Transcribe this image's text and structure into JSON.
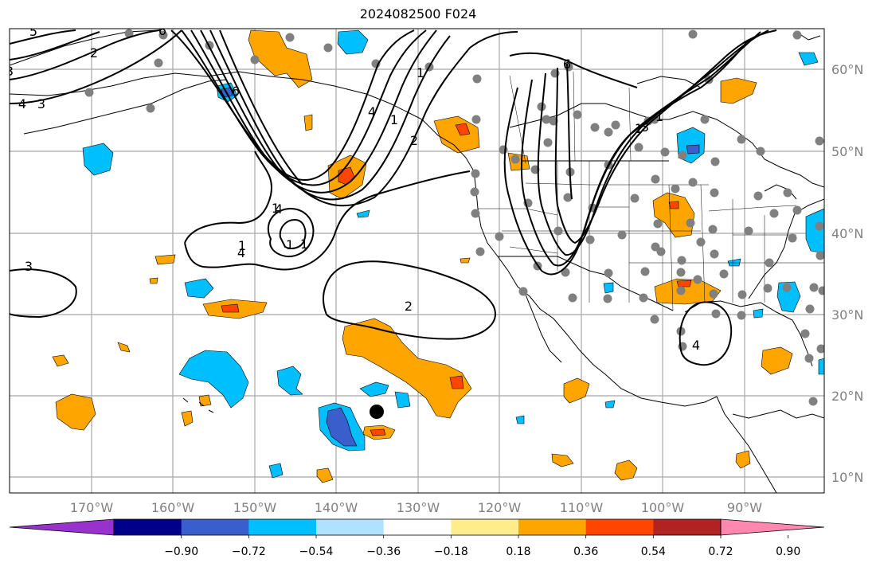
{
  "title": "2024082500 F024",
  "colors": {
    "grid": "#a8a8a8",
    "coast": "#000000",
    "contour": "#000000",
    "station": "#808080",
    "center_marker": "#000000",
    "orange": "#ffa500",
    "red_orange": "#ff4500",
    "deep_sky": "#00bfff",
    "royal": "#3a5fcd"
  },
  "map": {
    "lon_ticks": [
      "170°W",
      "160°W",
      "150°W",
      "140°W",
      "130°W",
      "120°W",
      "110°W",
      "100°W",
      "90°W"
    ],
    "lat_ticks": [
      "10°N",
      "20°N",
      "30°N",
      "40°N",
      "50°N",
      "60°N"
    ],
    "contour_labels": [
      "5",
      "2",
      "6",
      "3",
      "4",
      "3",
      "6",
      "4",
      "1",
      "2",
      "1",
      "6",
      "4",
      "1",
      "1",
      "1",
      "1",
      "4",
      "3",
      "2",
      "4",
      "3",
      "1",
      "1"
    ]
  },
  "colorbar": {
    "colors": [
      "#9932cc",
      "#00008b",
      "#3a5fcd",
      "#00bfff",
      "#b0e2ff",
      "#ffffff",
      "#ffec8b",
      "#ffa500",
      "#ff4500",
      "#b22222",
      "#ff88b0"
    ],
    "tick_labels": [
      "−0.90",
      "−0.72",
      "−0.54",
      "−0.36",
      "−0.18",
      "0.18",
      "0.36",
      "0.54",
      "0.72",
      "0.90"
    ]
  }
}
